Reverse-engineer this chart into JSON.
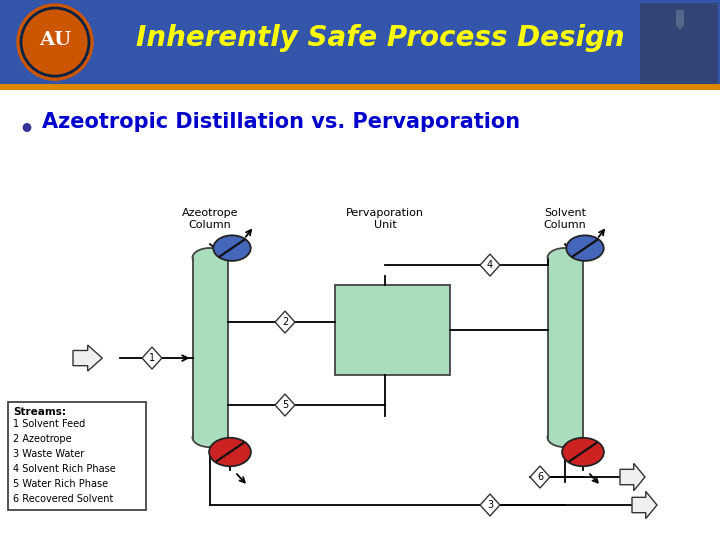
{
  "title": "Inherently Safe Process Design",
  "subtitle": "Azeotropic Distillation vs. Pervaporation",
  "header_bg": "#3355aa",
  "header_text_color": "#ffff00",
  "subtitle_color": "#0000cc",
  "bullet_color": "#333399",
  "bg_color": "#ffffff",
  "column1_label": "Azeotrope\nColumn",
  "column2_label": "Pervaporation\nUnit",
  "column3_label": "Solvent\nColumn",
  "streams_label": "Streams:",
  "streams": [
    "1 Solvent Feed",
    "2 Azeotrope",
    "3 Waste Water",
    "4 Solvent Rich Phase",
    "5 Water Rich Phase",
    "6 Recovered Solvent"
  ],
  "col_green": "#aaddbb",
  "pervap_green": "#aaddbb",
  "blue_circle": "#4466bb",
  "red_circle": "#cc2222",
  "line_color": "#000000",
  "lw": 1.3
}
